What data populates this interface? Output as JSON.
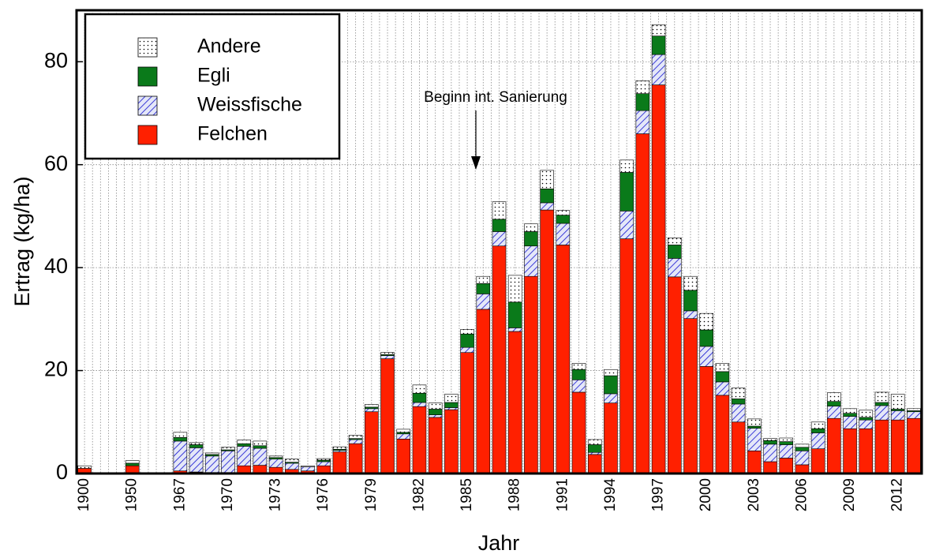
{
  "chart_data": {
    "type": "stacked_bar",
    "y_label": "Ertrag  (kg/ha)",
    "x_label": "Jahr",
    "annotation": "Beginn int. Sanierung",
    "ylim": [
      0,
      90
    ],
    "yticks": [
      0,
      20,
      40,
      60,
      80
    ],
    "grid": true,
    "legend": "upper left",
    "categories": [
      "1900",
      null,
      null,
      "1950",
      null,
      null,
      "1967",
      null,
      null,
      "1970",
      null,
      null,
      "1973",
      null,
      null,
      "1976",
      null,
      null,
      "1979",
      null,
      null,
      "1982",
      null,
      null,
      "1985",
      null,
      null,
      "1988",
      null,
      null,
      "1991",
      null,
      null,
      "1994",
      null,
      null,
      "1997",
      null,
      null,
      "2000",
      null,
      null,
      "2003",
      null,
      null,
      "2006",
      null,
      null,
      "2009",
      null,
      null,
      "2012",
      null
    ],
    "series": [
      {
        "name": "Andere",
        "color": "#000000",
        "fill_style": "dots",
        "values": [
          0.5,
          null,
          null,
          0.5,
          null,
          null,
          1.0,
          0.4,
          0.3,
          0.5,
          0.7,
          0.9,
          0.3,
          0.6,
          0.2,
          0.3,
          0.5,
          0.6,
          0.5,
          0.4,
          0.6,
          1.6,
          1.2,
          1.6,
          0.9,
          1.4,
          3.4,
          5.2,
          1.5,
          3.6,
          0.9,
          1.2,
          1.0,
          1.2,
          2.4,
          2.5,
          2.2,
          1.4,
          2.7,
          3.2,
          1.6,
          2.1,
          1.4,
          0.4,
          0.7,
          0.6,
          1.3,
          1.7,
          0.9,
          1.4,
          2.0,
          2.9,
          0.4
        ]
      },
      {
        "name": "Egli",
        "color": "#0a7a1a",
        "fill_style": "solid",
        "values": [
          0,
          null,
          null,
          0.5,
          null,
          null,
          0.7,
          0.6,
          0.3,
          0.2,
          0.5,
          0.5,
          0.3,
          0.2,
          0,
          0.3,
          0.2,
          0.2,
          0.3,
          0.2,
          0.3,
          1.8,
          1.1,
          1.0,
          2.6,
          2.0,
          2.4,
          5.0,
          2.8,
          2.7,
          1.6,
          2.0,
          1.5,
          3.5,
          7.5,
          3.3,
          3.6,
          2.6,
          4.0,
          3.2,
          2.0,
          1.0,
          0.4,
          0.7,
          0.6,
          0.7,
          0.8,
          0.9,
          0.6,
          0.5,
          0.6,
          0.3,
          0.2
        ]
      },
      {
        "name": "Weissfische",
        "color": "#1010d0",
        "fill_style": "hatch",
        "values": [
          0,
          null,
          null,
          0,
          null,
          null,
          5.8,
          4.7,
          3.2,
          4.2,
          3.8,
          3.3,
          1.6,
          1.2,
          0.8,
          0.8,
          0.3,
          0.8,
          0.6,
          0.6,
          1.0,
          0.8,
          0.5,
          0.4,
          1.0,
          3.0,
          2.8,
          0.7,
          5.9,
          1.4,
          4.2,
          2.4,
          0.4,
          1.8,
          5.4,
          4.5,
          5.9,
          3.6,
          1.5,
          3.9,
          2.6,
          3.5,
          4.4,
          3.4,
          2.6,
          2.7,
          3.1,
          2.4,
          2.4,
          1.7,
          2.8,
          1.8,
          1.3
        ]
      },
      {
        "name": "Felchen",
        "color": "#ff2000",
        "fill_style": "solid",
        "values": [
          1.0,
          null,
          null,
          1.5,
          null,
          null,
          0.5,
          0.3,
          0.2,
          0.2,
          1.5,
          1.6,
          1.2,
          0.8,
          0.5,
          1.5,
          4.2,
          5.8,
          12.0,
          22.3,
          6.7,
          13.0,
          10.9,
          12.4,
          23.5,
          31.9,
          44.2,
          27.6,
          38.3,
          51.2,
          44.4,
          15.8,
          3.7,
          13.7,
          45.6,
          66.0,
          75.5,
          38.2,
          30.1,
          20.8,
          15.2,
          10.0,
          4.4,
          2.3,
          3.0,
          1.7,
          4.8,
          10.7,
          8.7,
          8.7,
          10.4,
          10.4,
          10.7
        ]
      }
    ]
  }
}
